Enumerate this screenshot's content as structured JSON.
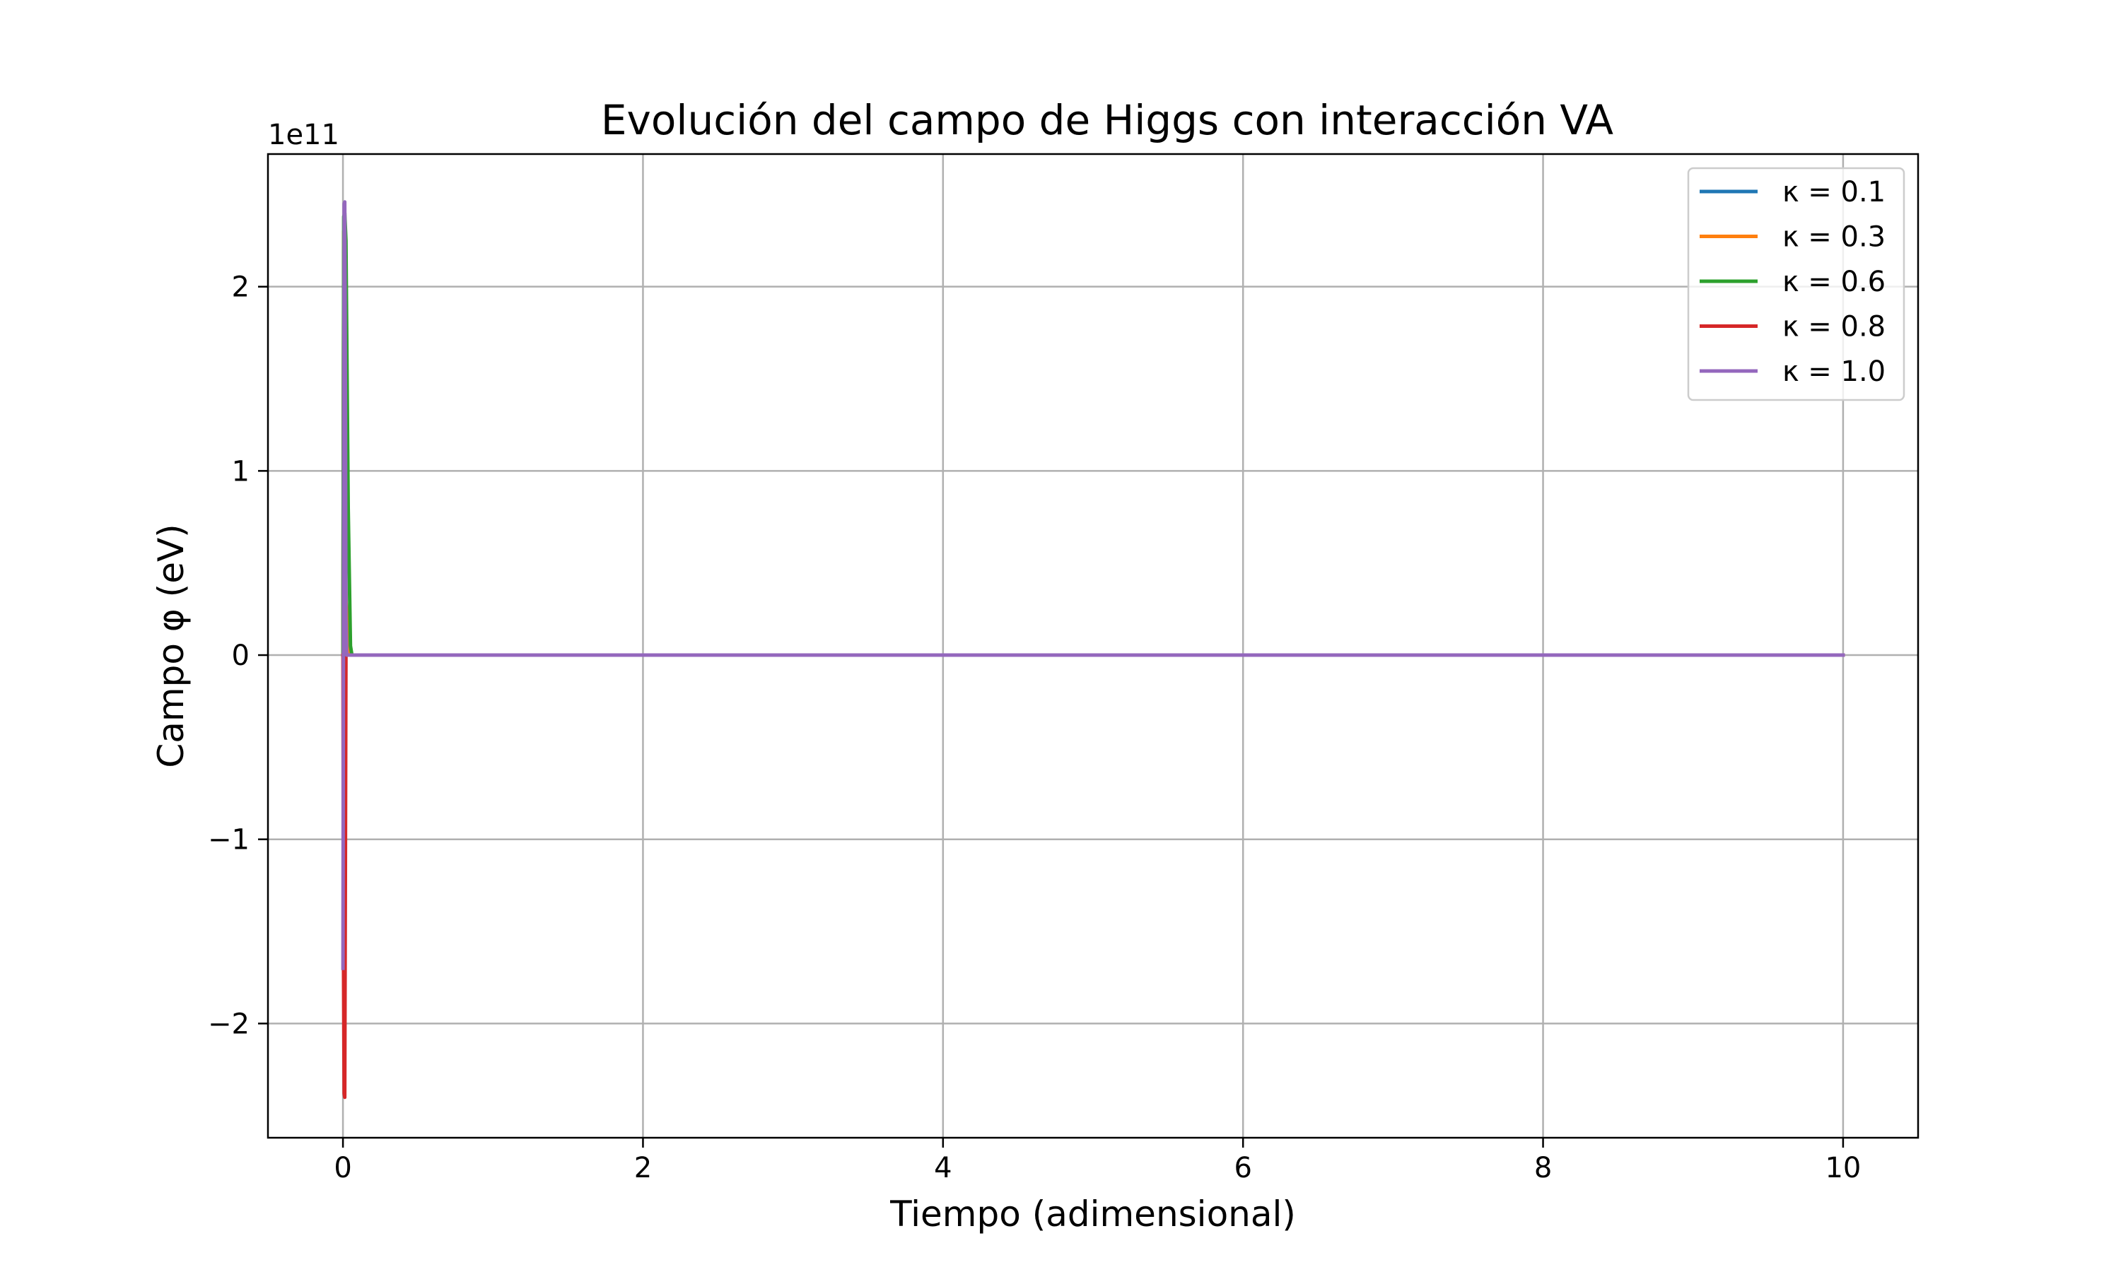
{
  "chart_data": {
    "type": "line",
    "title": "Evolución del campo de Higgs con interacción VA",
    "xlabel": "Tiempo (adimensional)",
    "ylabel": "Campo φ (eV)",
    "y_offset_label": "1e11",
    "xlim": [
      -0.5,
      10.5
    ],
    "ylim": [
      -2.62,
      2.72
    ],
    "xticks": [
      0,
      2,
      4,
      6,
      8,
      10
    ],
    "xtick_labels": [
      "0",
      "2",
      "4",
      "6",
      "8",
      "10"
    ],
    "yticks": [
      -2,
      -1,
      0,
      1,
      2
    ],
    "ytick_labels": [
      "−2",
      "−1",
      "0",
      "1",
      "2"
    ],
    "grid": true,
    "legend_position": "top-right",
    "series": [
      {
        "name": "κ = 0.1",
        "color": "#1f77b4",
        "x": [
          0,
          0.005,
          0.012,
          0.02,
          0.04,
          0.06,
          10
        ],
        "y": [
          0,
          2.2,
          1.0,
          0.3,
          0.01,
          0,
          0
        ]
      },
      {
        "name": "κ = 0.3",
        "color": "#ff7f0e",
        "x": [
          0,
          0.005,
          0.012,
          0.02,
          0.04,
          0.06,
          10
        ],
        "y": [
          0,
          2.3,
          1.1,
          0.3,
          0.01,
          0,
          0
        ]
      },
      {
        "name": "κ = 0.6",
        "color": "#2ca02c",
        "x": [
          0,
          0.005,
          0.012,
          0.02,
          0.035,
          0.05,
          0.06,
          10
        ],
        "y": [
          0,
          2.38,
          2.4,
          2.25,
          0.8,
          0.05,
          0,
          0
        ]
      },
      {
        "name": "κ = 0.8",
        "color": "#d62728",
        "x": [
          0,
          0.004,
          0.008,
          0.012,
          0.016,
          0.02,
          0.06,
          10
        ],
        "y": [
          0,
          -1.7,
          -2.38,
          -2.4,
          -1.2,
          0,
          0,
          0
        ]
      },
      {
        "name": "κ = 1.0",
        "color": "#9467bd",
        "x": [
          0,
          0.004,
          0.008,
          0.012,
          0.016,
          0.02,
          0.025,
          0.06,
          10
        ],
        "y": [
          -1.7,
          0.5,
          2.45,
          2.46,
          1.5,
          0.2,
          0,
          0,
          0
        ]
      }
    ]
  }
}
